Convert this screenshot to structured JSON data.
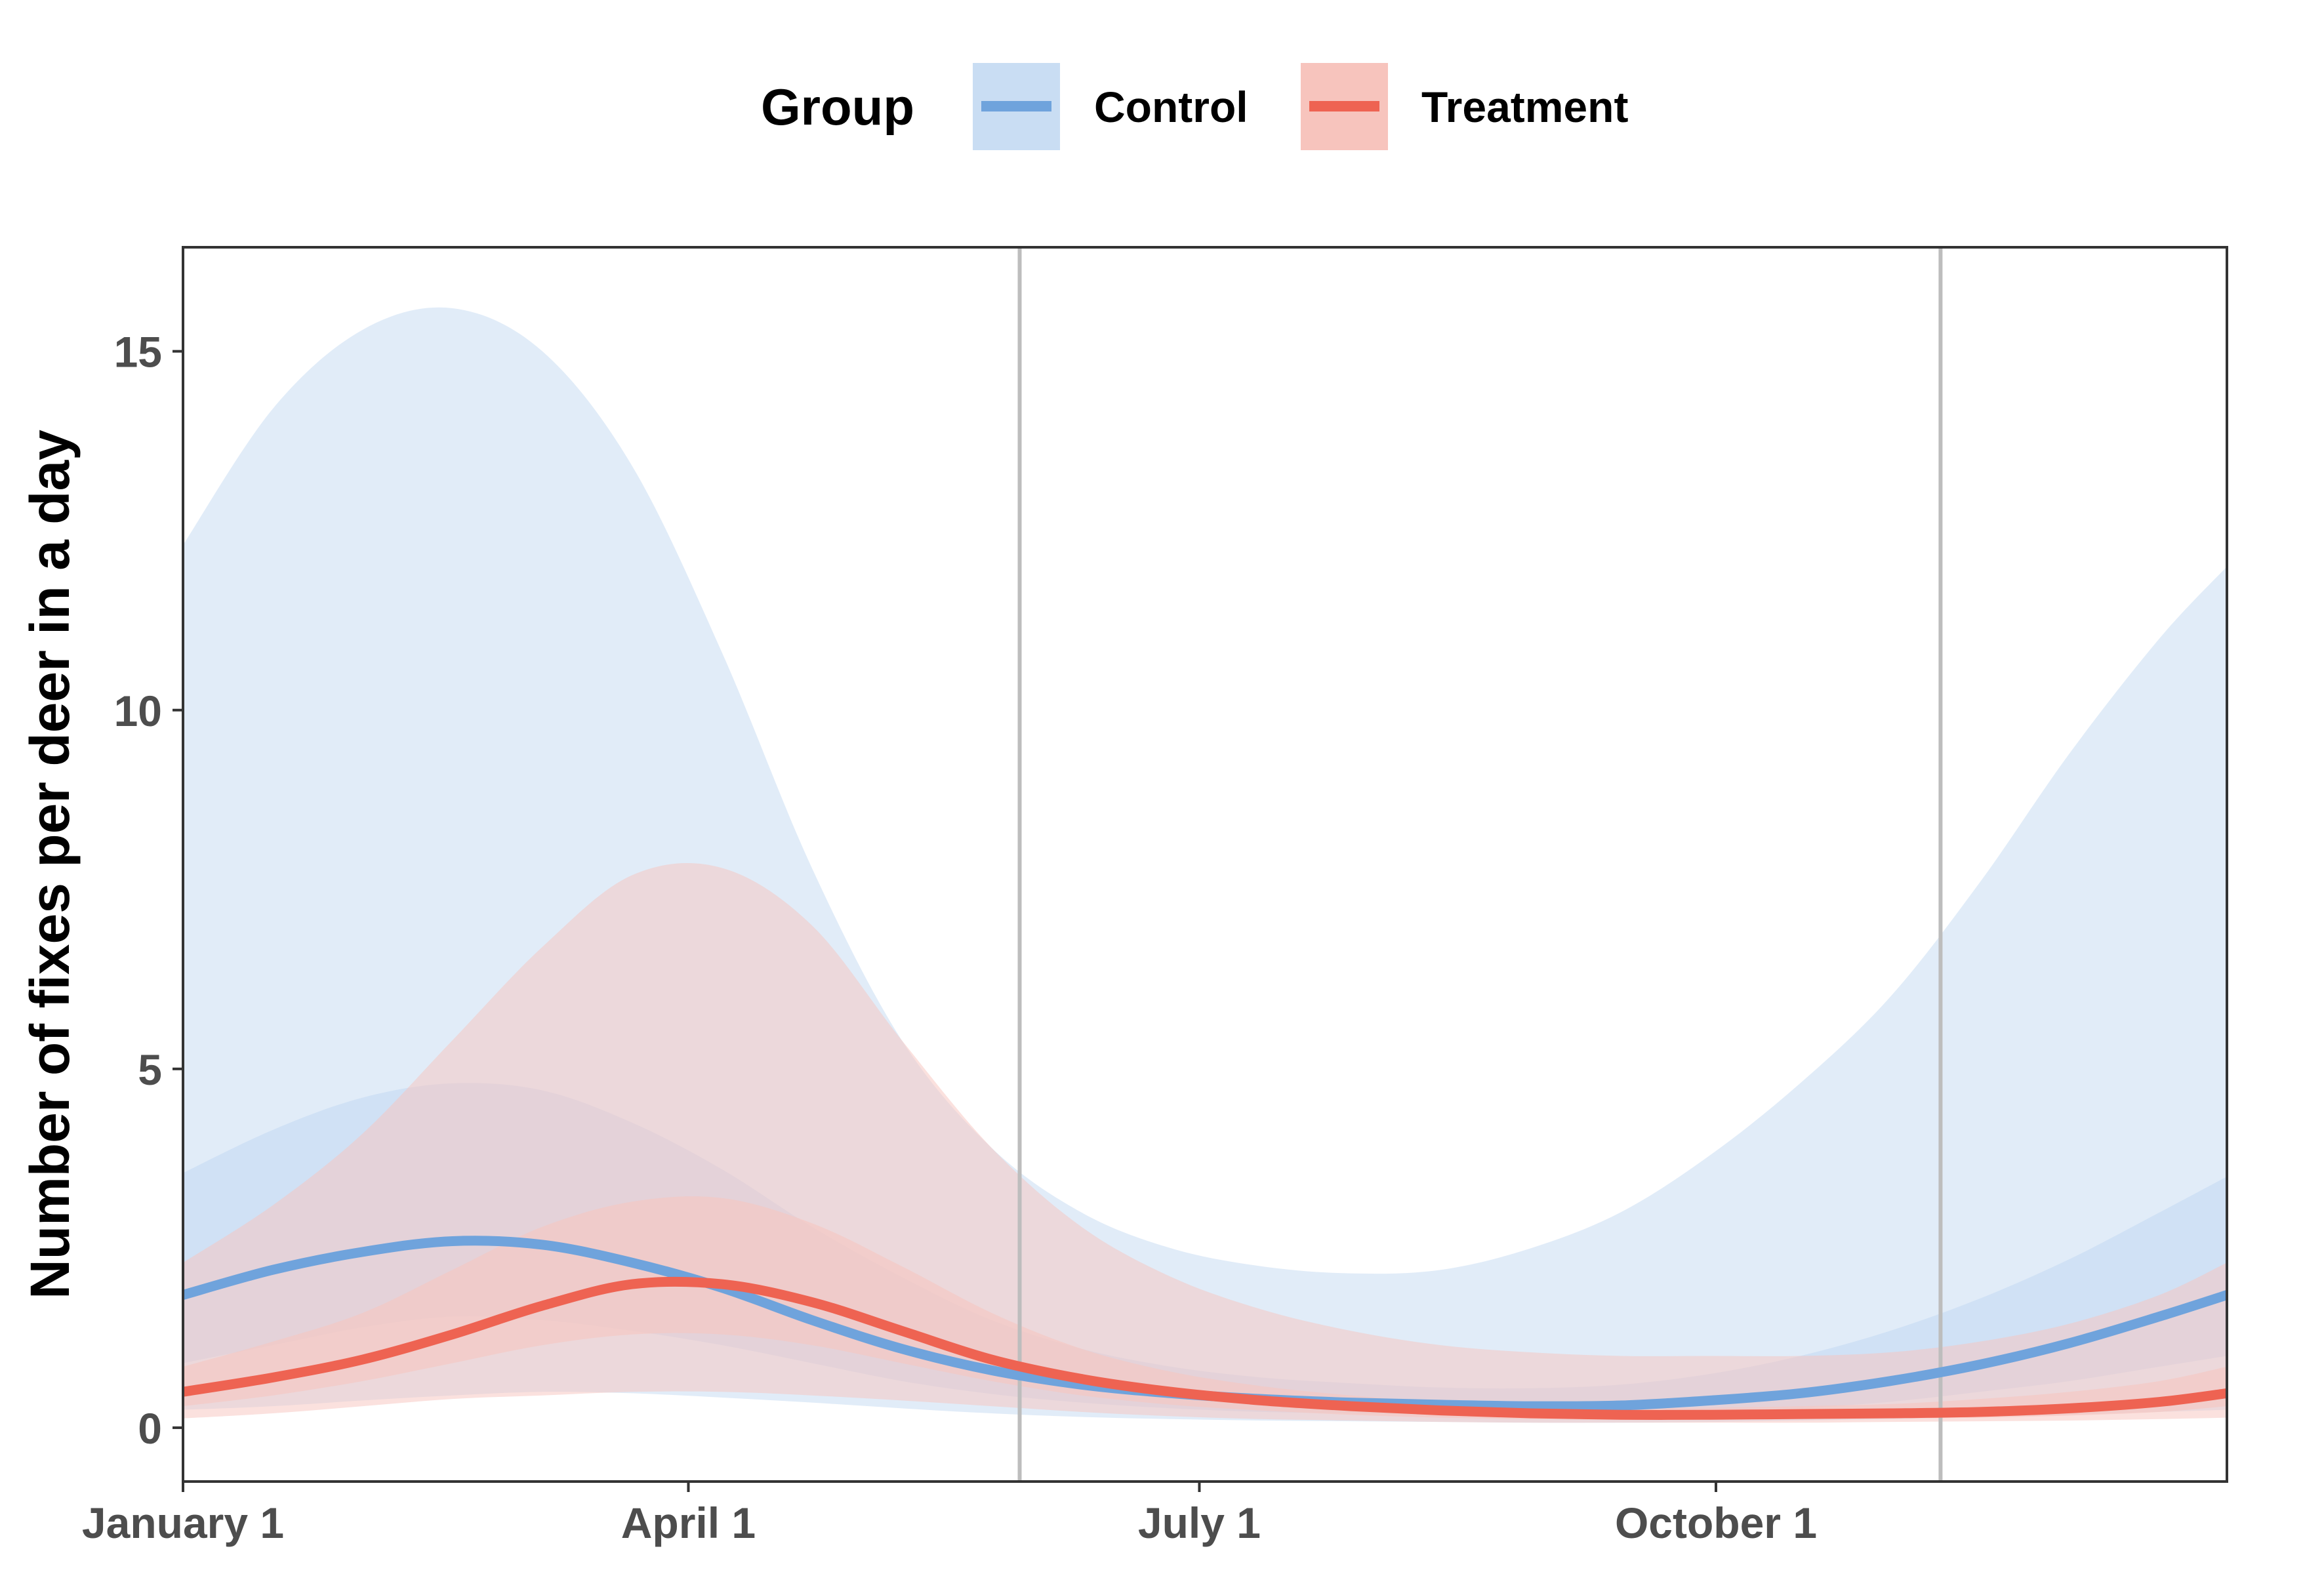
{
  "chart_data": {
    "type": "area",
    "title": "",
    "xlabel": "",
    "ylabel": "Number of fixes per deer in a day",
    "x_ticks": [
      {
        "label": "January 1",
        "day": 1
      },
      {
        "label": "April 1",
        "day": 91
      },
      {
        "label": "July 1",
        "day": 182
      },
      {
        "label": "October 1",
        "day": 274
      }
    ],
    "xlim": [
      1,
      365
    ],
    "y_ticks": [
      0,
      5,
      10,
      15
    ],
    "ylim": [
      -0.75,
      16.45
    ],
    "vertical_lines_day": [
      150,
      314
    ],
    "grid": false,
    "legend": {
      "title": "Group",
      "position": "top"
    },
    "series": [
      {
        "name": "Control",
        "color": "#6fa3dc",
        "fill": "#c9ddf3",
        "x": [
          1,
          17,
          33,
          49,
          65,
          81,
          97,
          113,
          129,
          145,
          161,
          177,
          193,
          209,
          225,
          241,
          257,
          273,
          289,
          305,
          321,
          337,
          353,
          365
        ],
        "mean": [
          1.85,
          2.2,
          2.45,
          2.6,
          2.55,
          2.3,
          1.95,
          1.5,
          1.1,
          0.8,
          0.6,
          0.48,
          0.4,
          0.35,
          0.32,
          0.3,
          0.31,
          0.38,
          0.48,
          0.65,
          0.88,
          1.18,
          1.55,
          1.85
        ],
        "inner_lo": [
          0.9,
          1.15,
          1.4,
          1.55,
          1.5,
          1.35,
          1.15,
          0.9,
          0.65,
          0.47,
          0.35,
          0.27,
          0.22,
          0.2,
          0.18,
          0.17,
          0.17,
          0.2,
          0.27,
          0.36,
          0.5,
          0.65,
          0.85,
          1.0
        ],
        "inner_hi": [
          3.55,
          4.15,
          4.6,
          4.8,
          4.7,
          4.25,
          3.6,
          2.8,
          2.1,
          1.5,
          1.1,
          0.85,
          0.7,
          0.62,
          0.56,
          0.55,
          0.6,
          0.75,
          1.0,
          1.35,
          1.8,
          2.35,
          3.0,
          3.5
        ],
        "outer_lo": [
          0.25,
          0.3,
          0.38,
          0.45,
          0.5,
          0.48,
          0.42,
          0.35,
          0.27,
          0.2,
          0.15,
          0.12,
          0.1,
          0.09,
          0.08,
          0.07,
          0.07,
          0.08,
          0.1,
          0.12,
          0.15,
          0.18,
          0.22,
          0.25
        ],
        "outer_hi": [
          12.3,
          14.2,
          15.3,
          15.6,
          15.0,
          13.4,
          10.8,
          7.8,
          5.4,
          3.9,
          3.0,
          2.5,
          2.25,
          2.15,
          2.2,
          2.5,
          3.0,
          3.8,
          4.8,
          6.0,
          7.6,
          9.4,
          11.0,
          12.0
        ]
      },
      {
        "name": "Treatment",
        "color": "#ee6352",
        "fill": "#f7c4bd",
        "x": [
          1,
          17,
          33,
          49,
          65,
          81,
          97,
          113,
          129,
          145,
          161,
          177,
          193,
          209,
          225,
          241,
          257,
          273,
          289,
          305,
          321,
          337,
          353,
          365
        ],
        "mean": [
          0.5,
          0.7,
          0.95,
          1.3,
          1.7,
          2.0,
          2.0,
          1.75,
          1.35,
          0.95,
          0.68,
          0.5,
          0.38,
          0.3,
          0.24,
          0.2,
          0.18,
          0.18,
          0.19,
          0.2,
          0.22,
          0.27,
          0.36,
          0.48
        ],
        "inner_lo": [
          0.3,
          0.45,
          0.65,
          0.9,
          1.15,
          1.3,
          1.3,
          1.15,
          0.9,
          0.65,
          0.45,
          0.32,
          0.24,
          0.18,
          0.14,
          0.12,
          0.11,
          0.11,
          0.12,
          0.13,
          0.14,
          0.17,
          0.22,
          0.3
        ],
        "inner_hi": [
          0.85,
          1.2,
          1.6,
          2.2,
          2.8,
          3.15,
          3.2,
          2.85,
          2.25,
          1.6,
          1.1,
          0.78,
          0.58,
          0.45,
          0.36,
          0.3,
          0.28,
          0.28,
          0.3,
          0.33,
          0.4,
          0.5,
          0.65,
          0.85
        ],
        "outer_lo": [
          0.13,
          0.2,
          0.3,
          0.4,
          0.45,
          0.5,
          0.5,
          0.45,
          0.38,
          0.3,
          0.22,
          0.16,
          0.12,
          0.1,
          0.08,
          0.07,
          0.07,
          0.07,
          0.07,
          0.08,
          0.09,
          0.1,
          0.12,
          0.14
        ],
        "outer_hi": [
          2.3,
          3.1,
          4.1,
          5.4,
          6.7,
          7.7,
          7.8,
          7.0,
          5.4,
          3.9,
          2.8,
          2.1,
          1.65,
          1.35,
          1.15,
          1.05,
          1.0,
          1.0,
          1.0,
          1.05,
          1.2,
          1.45,
          1.85,
          2.3
        ]
      }
    ]
  }
}
